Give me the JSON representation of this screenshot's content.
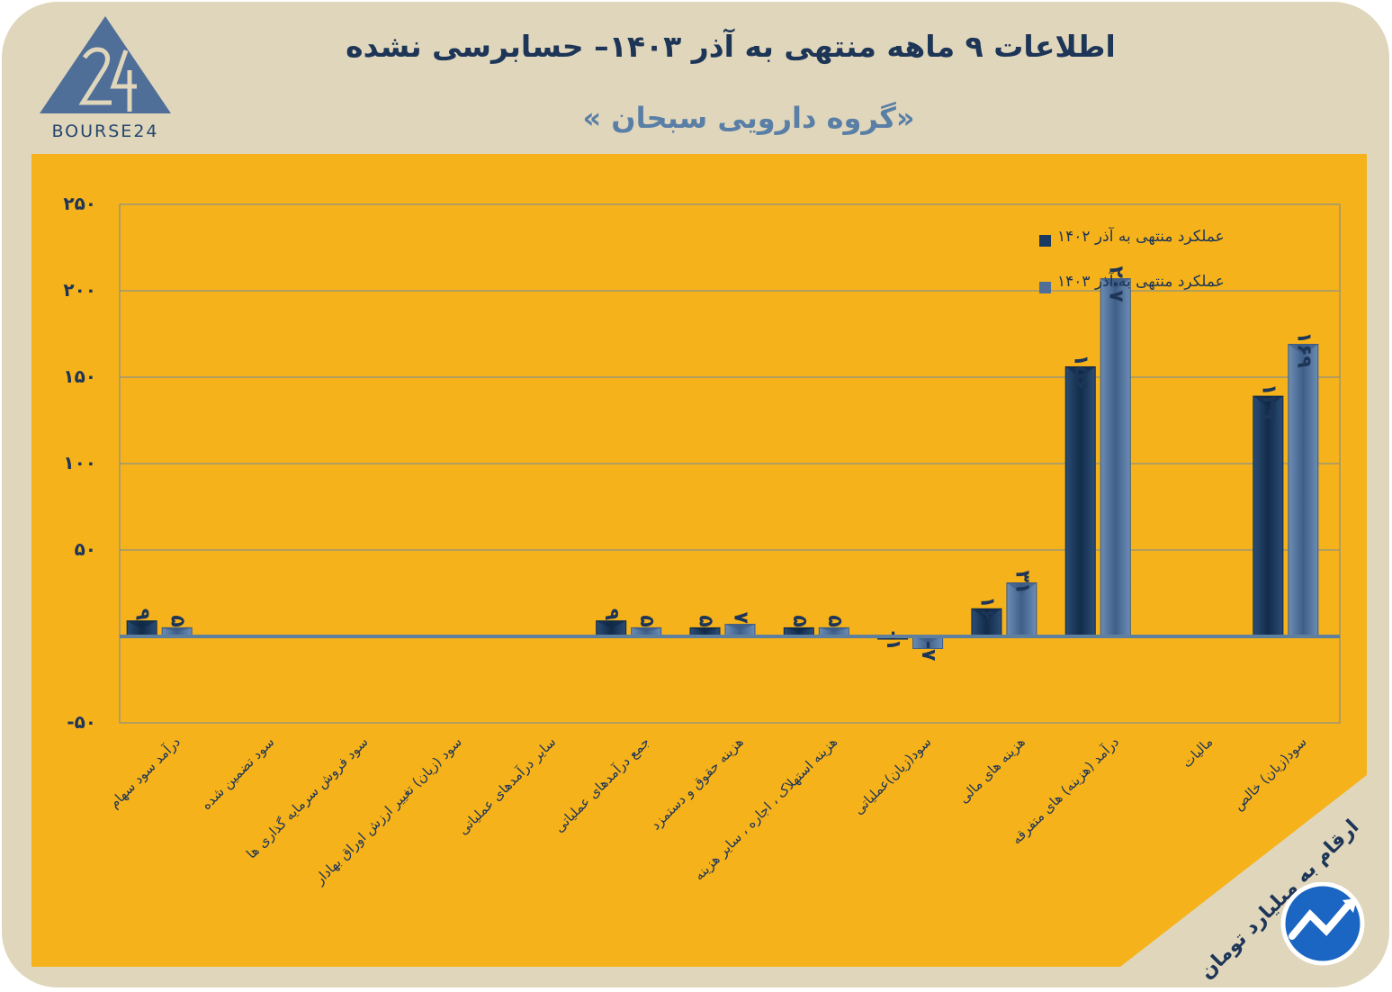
{
  "header": {
    "title": "اطلاعات ۹ ماهه منتهی به آذر  ۱۴۰۳– حسابرسی نشده",
    "subtitle": "«گروه دارویی سبحان »",
    "logo_text": "BOURSE24"
  },
  "unit_note": "ارقام به میلیارد تومان",
  "colors": {
    "background": "#e0d6bb",
    "panel": "#f6b21b",
    "series_1402": "#1a3a5f",
    "series_1403": "#4f6f98",
    "grid": "#6f8aa3",
    "text": "#1d3557"
  },
  "chart_data": {
    "type": "bar",
    "title": "",
    "xlabel": "",
    "ylabel": "",
    "ylim": [
      -50,
      250
    ],
    "yticks": [
      -50,
      50,
      100,
      150,
      200,
      250
    ],
    "ytick_labels": [
      "-۵۰",
      "۵۰",
      "۱۰۰",
      "۱۵۰",
      "۲۰۰",
      "۲۵۰"
    ],
    "grid": true,
    "legend_position": "top-right",
    "categories": [
      "درآمد سود سهام",
      "سود تضمین شده",
      "سود فروش سرمایه گذاری ها",
      "سود (زیان) تغییر ارزش اوراق بهادار",
      "سایر درآمدهای عملیاتی",
      "جمع درآمدهای عملیاتی",
      "هزینه حقوق و دستمزد",
      "هزینه استهلاک ، اجاره ، سایر هزینه",
      "سود(زیان)عملیاتی",
      "هزینه های مالی",
      "درآمد (هزینه) های متفرقه",
      "مالیات",
      "سود(زیان) خالص"
    ],
    "series": [
      {
        "name": "عملکرد منتهی به آذر ۱۴۰۲",
        "values": [
          9,
          null,
          null,
          null,
          null,
          9,
          5,
          5,
          -1,
          16,
          156,
          null,
          139
        ],
        "labels": [
          "۹",
          "",
          "",
          "",
          "",
          "۹",
          "۵",
          "۵",
          "-۱",
          "۱۶",
          "۱۵۶",
          "",
          "۱۳۹"
        ]
      },
      {
        "name": "عملکرد منتهی به آذر ۱۴۰۳",
        "values": [
          5,
          null,
          null,
          null,
          null,
          5,
          7,
          5,
          -7,
          31,
          207,
          null,
          169
        ],
        "labels": [
          "۵",
          "",
          "",
          "",
          "",
          "۵",
          "۷",
          "۵",
          "-۷",
          "۳۱",
          "۲۰۷",
          "",
          "۱۶۹"
        ]
      }
    ]
  }
}
